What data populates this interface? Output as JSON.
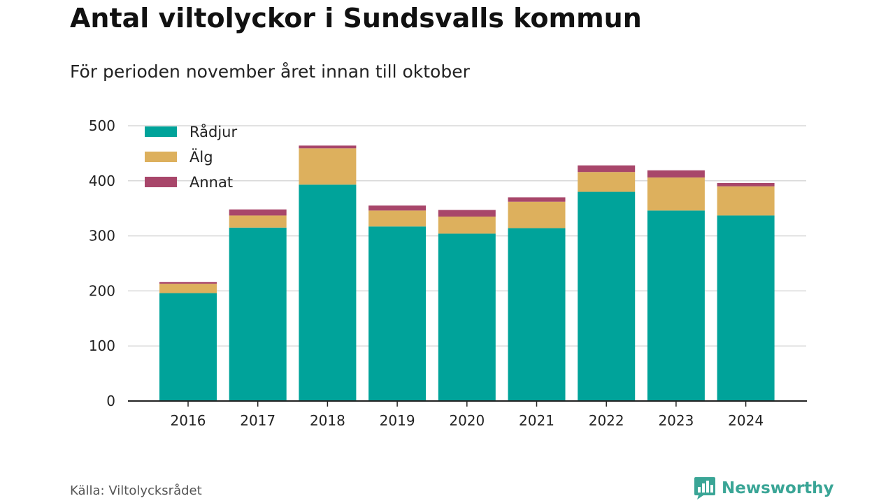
{
  "title": "Antal viltolyckor i Sundsvalls kommun",
  "subtitle": "För perioden november året innan till oktober",
  "source": "Källa: Viltolycksrådet",
  "brand": {
    "name": "Newsworthy",
    "logo_icon": "newsworthy-chart-logo-icon",
    "color": "#3aa596"
  },
  "chart_data": {
    "type": "bar",
    "stacked": true,
    "title": "",
    "xlabel": "",
    "ylabel": "",
    "ylim": [
      0,
      500
    ],
    "yticks": [
      0,
      100,
      200,
      300,
      400,
      500
    ],
    "grid": true,
    "legend_position": "top-left",
    "categories": [
      "2016",
      "2017",
      "2018",
      "2019",
      "2020",
      "2021",
      "2022",
      "2023",
      "2024"
    ],
    "series": [
      {
        "name": "Rådjur",
        "color": "#00a39a",
        "values": [
          196,
          315,
          393,
          317,
          304,
          314,
          380,
          346,
          337
        ]
      },
      {
        "name": "Älg",
        "color": "#ddb05d",
        "values": [
          17,
          22,
          66,
          29,
          31,
          48,
          36,
          60,
          53
        ]
      },
      {
        "name": "Annat",
        "color": "#a8466a",
        "values": [
          3,
          11,
          5,
          9,
          12,
          8,
          12,
          13,
          6
        ]
      }
    ]
  }
}
